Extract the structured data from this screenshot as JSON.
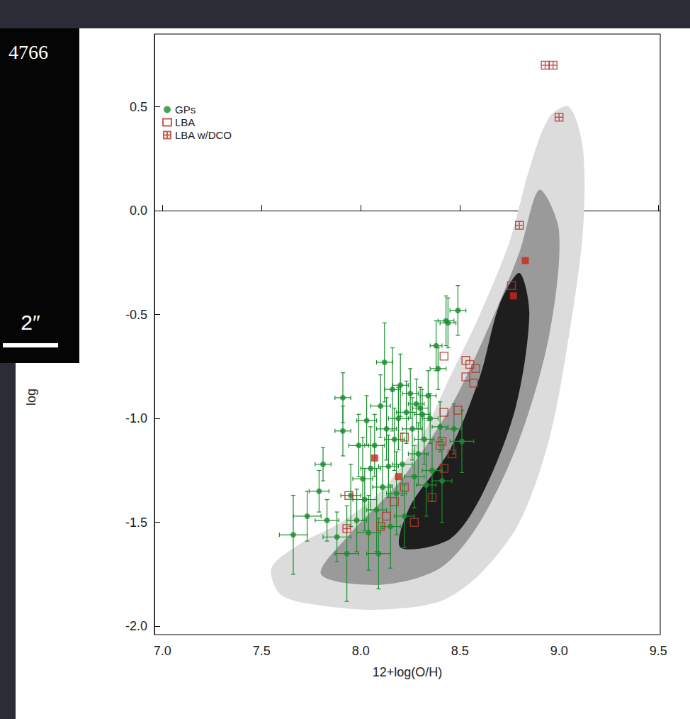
{
  "chart_data": {
    "type": "scatter",
    "xlabel": "12+log(O/H)",
    "ylabel": "log",
    "xlim": [
      6.96,
      9.51
    ],
    "ylim": [
      -2.04,
      0.85
    ],
    "xticks": [
      {
        "value": 7,
        "label": "7.0"
      },
      7.5,
      {
        "value": 8,
        "label": "8.0"
      },
      8.5,
      {
        "value": 9,
        "label": "9.0"
      },
      9.5
    ],
    "yticks": [
      {
        "value": -2,
        "label": "-2.0"
      },
      -1.5,
      {
        "value": -1,
        "label": "-1.0"
      },
      -0.5,
      {
        "value": 0,
        "label": "0.0"
      },
      0.5
    ],
    "legend": "upper left",
    "series": [
      {
        "name": "GPs",
        "color": "#1a8c2e",
        "marker": "circle",
        "x": [
          7.66,
          7.73,
          7.79,
          7.81,
          7.83,
          7.88,
          7.91,
          7.91,
          7.93,
          7.95,
          7.98,
          7.99,
          8.01,
          8.02,
          8.03,
          8.04,
          8.05,
          8.07,
          8.08,
          8.09,
          8.1,
          8.11,
          8.12,
          8.13,
          8.14,
          8.15,
          8.16,
          8.17,
          8.18,
          8.19,
          8.2,
          8.21,
          8.22,
          8.23,
          8.25,
          8.26,
          8.27,
          8.28,
          8.29,
          8.3,
          8.31,
          8.32,
          8.33,
          8.34,
          8.35,
          8.36,
          8.38,
          8.39,
          8.4,
          8.41,
          8.43,
          8.44,
          8.47,
          8.49,
          8.51
        ],
        "values": [
          -1.56,
          -1.47,
          -1.35,
          -1.22,
          -1.49,
          -1.57,
          -0.9,
          -1.06,
          -1.65,
          -1.37,
          -1.49,
          -1.13,
          -1.29,
          -1.39,
          -1.01,
          -1.55,
          -1.24,
          -1.13,
          -1.44,
          -1.65,
          -0.94,
          -1.33,
          -0.73,
          -1.05,
          -1.23,
          -1.52,
          -0.86,
          -1.1,
          -1.36,
          -1.0,
          -0.84,
          -1.22,
          -1.47,
          -0.97,
          -0.88,
          -1.05,
          -1.28,
          -0.93,
          -1.17,
          -0.95,
          -0.98,
          -1.1,
          -1.32,
          -0.89,
          -1.0,
          -1.25,
          -0.65,
          -0.76,
          -1.04,
          -1.3,
          -0.53,
          -0.54,
          -1.05,
          -0.48,
          -1.11
        ],
        "x_error": [
          0.07,
          0.07,
          0.05,
          0.04,
          0.06,
          0.07,
          0.04,
          0.04,
          0.06,
          0.05,
          0.05,
          0.05,
          0.05,
          0.06,
          0.05,
          0.06,
          0.05,
          0.05,
          0.05,
          0.06,
          0.05,
          0.05,
          0.04,
          0.05,
          0.05,
          0.05,
          0.04,
          0.05,
          0.05,
          0.05,
          0.04,
          0.05,
          0.05,
          0.05,
          0.04,
          0.05,
          0.05,
          0.04,
          0.05,
          0.04,
          0.04,
          0.05,
          0.05,
          0.04,
          0.04,
          0.05,
          0.03,
          0.04,
          0.04,
          0.05,
          0.04,
          0.04,
          0.04,
          0.04,
          0.06
        ],
        "y_error": [
          0.19,
          0.12,
          0.1,
          0.08,
          0.1,
          0.12,
          0.12,
          0.12,
          0.23,
          0.15,
          0.15,
          0.15,
          0.2,
          0.15,
          0.12,
          0.18,
          0.2,
          0.15,
          0.2,
          0.17,
          0.15,
          0.2,
          0.19,
          0.15,
          0.15,
          0.2,
          0.2,
          0.15,
          0.2,
          0.15,
          0.15,
          0.15,
          0.15,
          0.15,
          0.12,
          0.15,
          0.15,
          0.12,
          0.15,
          0.1,
          0.12,
          0.12,
          0.15,
          0.12,
          0.12,
          0.15,
          0.12,
          0.1,
          0.12,
          0.2,
          0.12,
          0.12,
          0.12,
          0.12,
          0.15
        ]
      },
      {
        "name": "LBA",
        "color": "#b5352a",
        "marker": "open_square",
        "x": [
          7.94,
          8.13,
          8.1,
          8.17,
          8.22,
          8.22,
          8.27,
          8.36,
          8.4,
          8.41,
          8.42,
          8.42,
          8.42,
          8.46,
          8.49,
          8.53,
          8.53,
          8.57,
          8.58,
          8.55,
          8.76
        ],
        "values": [
          -1.37,
          -1.47,
          -1.52,
          -1.4,
          -1.09,
          -1.33,
          -1.5,
          -1.38,
          -1.13,
          -1.11,
          -1.24,
          -0.7,
          -0.97,
          -1.17,
          -0.96,
          -0.72,
          -0.8,
          -0.83,
          -0.76,
          -0.74,
          -0.36
        ]
      },
      {
        "name": "LBA w/DCO",
        "color": "#b5352a",
        "marker": "crossed_square",
        "x": [
          8.93,
          8.97,
          9.0,
          8.8,
          7.93
        ],
        "values": [
          0.7,
          0.7,
          0.45,
          -0.07,
          -1.53
        ]
      },
      {
        "color": "#c8281e",
        "marker": "filled_square",
        "x": [
          8.07,
          8.19,
          8.77,
          8.83
        ],
        "values": [
          -1.19,
          -1.28,
          -0.41,
          -0.24
        ]
      }
    ],
    "density": [
      {
        "color": "#dcdcdc",
        "points": [
          [
            7.55,
            -1.72
          ],
          [
            7.6,
            -1.85
          ],
          [
            7.8,
            -1.9
          ],
          [
            8.1,
            -1.92
          ],
          [
            8.4,
            -1.88
          ],
          [
            8.6,
            -1.75
          ],
          [
            8.8,
            -1.5
          ],
          [
            8.95,
            -1.1
          ],
          [
            9.05,
            -0.6
          ],
          [
            9.12,
            -0.1
          ],
          [
            9.12,
            0.3
          ],
          [
            9.05,
            0.5
          ],
          [
            8.95,
            0.45
          ],
          [
            8.85,
            0.2
          ],
          [
            8.75,
            -0.15
          ],
          [
            8.6,
            -0.5
          ],
          [
            8.45,
            -0.8
          ],
          [
            8.3,
            -1.1
          ],
          [
            8.1,
            -1.35
          ],
          [
            7.9,
            -1.5
          ],
          [
            7.7,
            -1.6
          ]
        ]
      },
      {
        "color": "#9a9a9a",
        "points": [
          [
            7.8,
            -1.75
          ],
          [
            8.1,
            -1.8
          ],
          [
            8.4,
            -1.72
          ],
          [
            8.6,
            -1.5
          ],
          [
            8.8,
            -1.1
          ],
          [
            8.95,
            -0.6
          ],
          [
            9.0,
            -0.1
          ],
          [
            8.9,
            0.1
          ],
          [
            8.8,
            -0.2
          ],
          [
            8.65,
            -0.55
          ],
          [
            8.45,
            -0.95
          ],
          [
            8.2,
            -1.3
          ],
          [
            7.95,
            -1.55
          ]
        ]
      },
      {
        "color": "#1e1e1e",
        "points": [
          [
            8.2,
            -1.62
          ],
          [
            8.45,
            -1.58
          ],
          [
            8.62,
            -1.35
          ],
          [
            8.78,
            -0.95
          ],
          [
            8.85,
            -0.5
          ],
          [
            8.8,
            -0.3
          ],
          [
            8.7,
            -0.45
          ],
          [
            8.6,
            -0.8
          ],
          [
            8.45,
            -1.15
          ],
          [
            8.25,
            -1.42
          ]
        ]
      }
    ],
    "inset": {
      "label": "4766",
      "scale_bar": "2″"
    }
  }
}
